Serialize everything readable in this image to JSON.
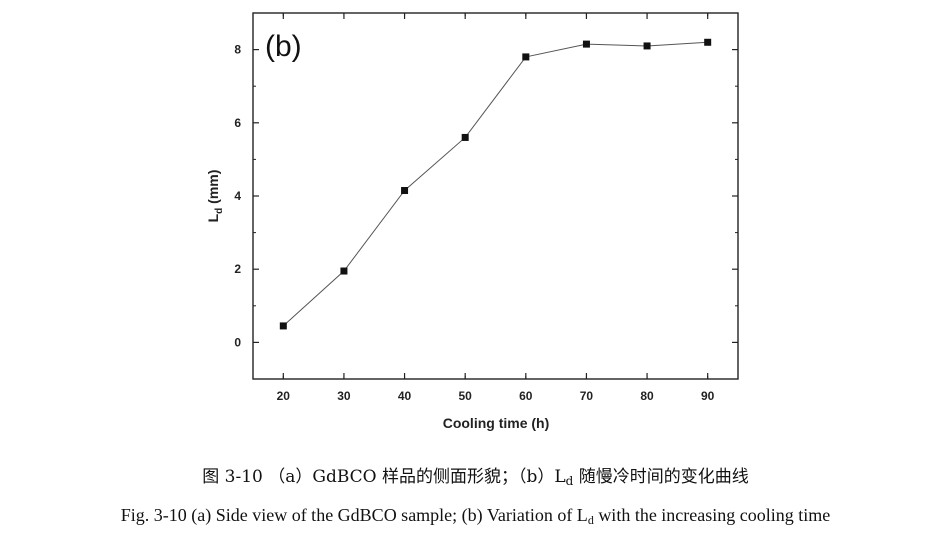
{
  "chart_data": {
    "type": "line",
    "panel_label": "(b)",
    "xlabel": "Cooling time (h)",
    "ylabel_main": "L",
    "ylabel_sub": "d",
    "ylabel_unit": " (mm)",
    "x": [
      20,
      30,
      40,
      50,
      60,
      70,
      80,
      90
    ],
    "series": [
      {
        "values": [
          0.45,
          1.95,
          4.15,
          5.6,
          7.8,
          8.15,
          8.1,
          8.2
        ]
      }
    ],
    "xlim": [
      15,
      95
    ],
    "ylim": [
      -1,
      9
    ],
    "xticks": [
      "20",
      "30",
      "40",
      "50",
      "60",
      "70",
      "80",
      "90"
    ],
    "yticks": [
      "0",
      "2",
      "4",
      "6",
      "8"
    ],
    "grid": false,
    "line_color": "#555555",
    "marker_color": "#111111"
  },
  "caption": {
    "cn_prefix": "图 3-10 （a）GdBCO 样品的侧面形貌；（b）L",
    "cn_sub": "d",
    "cn_suffix": " 随慢冷时间的变化曲线",
    "en_prefix": "Fig. 3-10 (a) Side view of the GdBCO sample; (b) Variation of L",
    "en_sub": "d",
    "en_suffix": " with the increasing cooling time"
  }
}
